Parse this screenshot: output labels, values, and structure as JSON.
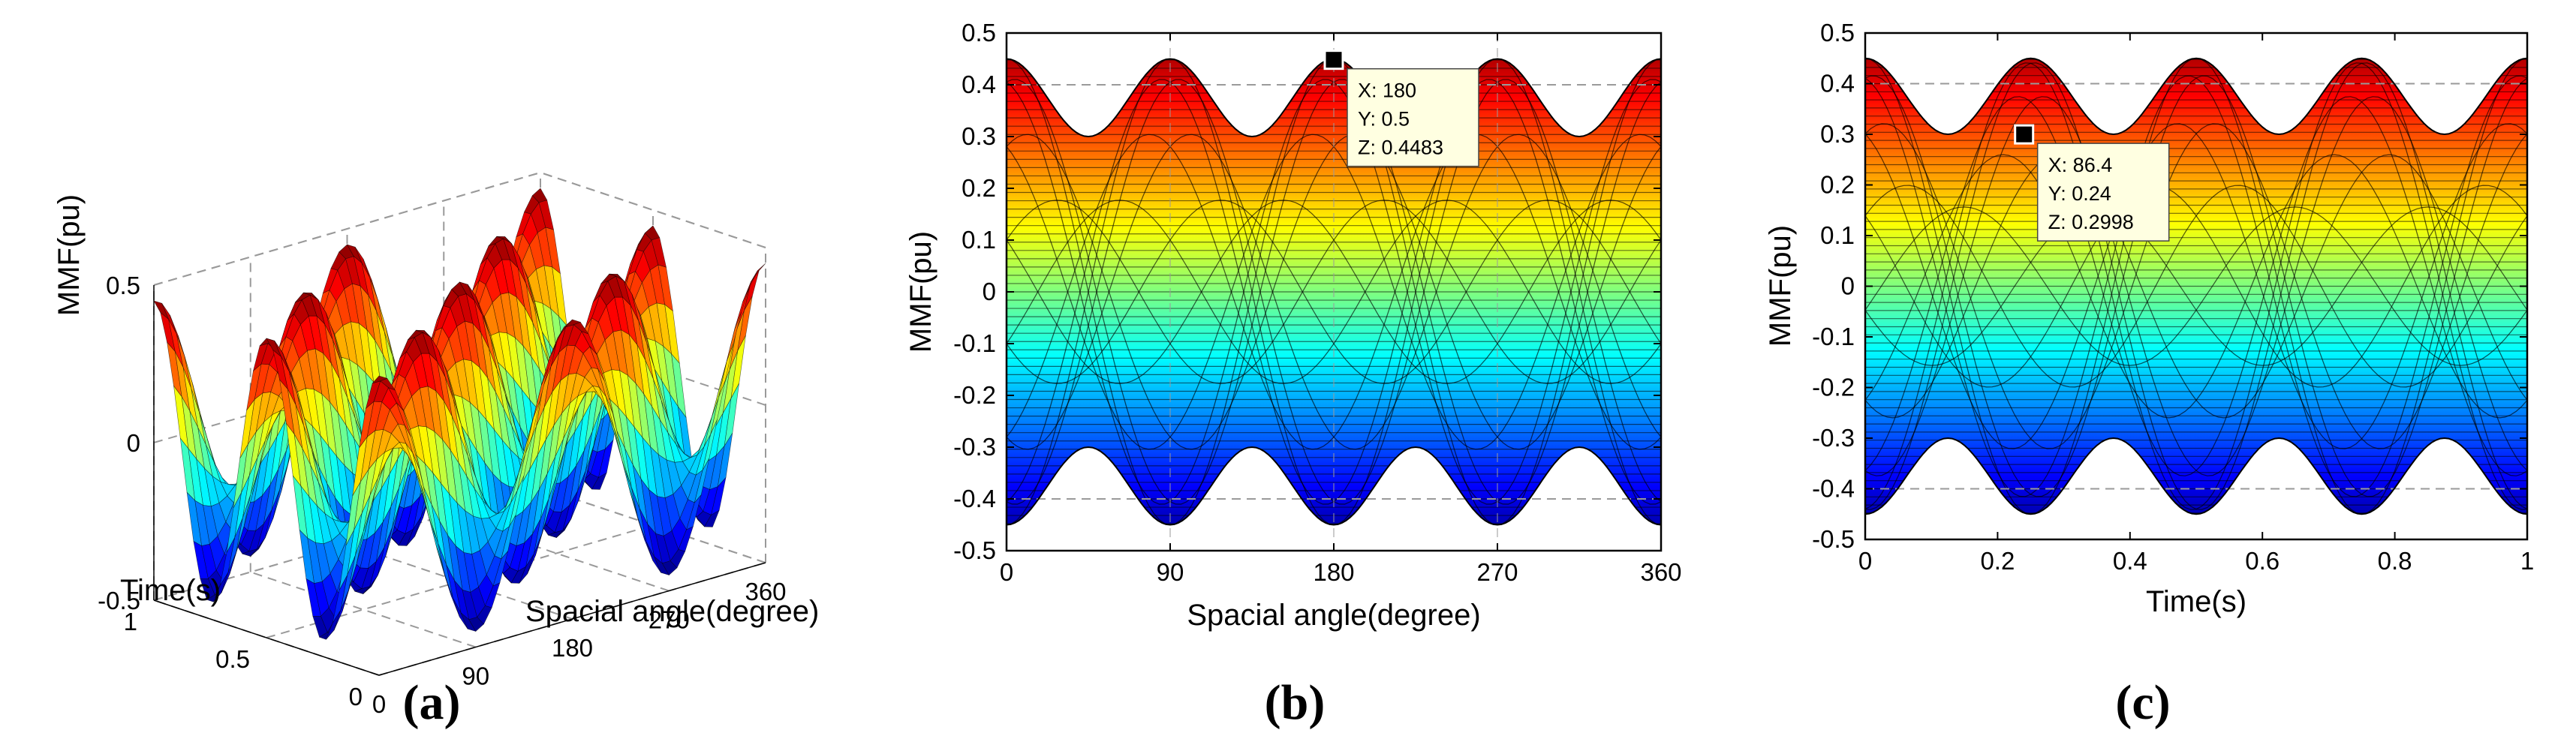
{
  "colors": {
    "colormap": "jet",
    "mesh": "#000000",
    "grid": "#9a9a9a",
    "tip_bg": "#ffffe1"
  },
  "chart_data": [
    {
      "type": "surface3d",
      "panel_label": "(a)",
      "xlabel": "Spacial angle(degree)",
      "ylabel": "Time(s)",
      "zlabel": "MMF(pu)",
      "xlim": [
        0,
        360
      ],
      "ylim": [
        0,
        1
      ],
      "zlim": [
        -0.5,
        0.5
      ],
      "xticks": [
        "0",
        "90",
        "180",
        "270",
        "360"
      ],
      "yticks": [
        "0",
        "0.5",
        "1"
      ],
      "zticks": [
        "-0.5",
        "0",
        "0.5"
      ],
      "grid": true
    },
    {
      "type": "surface_xz_view",
      "panel_label": "(b)",
      "xlabel": "Spacial angle(degree)",
      "ylabel": "MMF(pu)",
      "xlim": [
        0,
        360
      ],
      "ylim": [
        -0.5,
        0.5
      ],
      "xticks": [
        "0",
        "90",
        "180",
        "270",
        "360"
      ],
      "yticks": [
        "-0.5",
        "-0.4",
        "-0.3",
        "-0.2",
        "-0.1",
        "0",
        "0.1",
        "0.2",
        "0.3",
        "0.4",
        "0.5"
      ],
      "envelope_max_at_0": 0.45,
      "envelope_min_at_90": 0.3,
      "marker": {
        "x": 180,
        "z": 0.4483
      },
      "datatip": [
        "X: 180",
        "Y: 0.5",
        "Z: 0.4483"
      ],
      "grid": true
    },
    {
      "type": "surface_yz_view",
      "panel_label": "(c)",
      "xlabel": "Time(s)",
      "ylabel": "MMF(pu)",
      "xlim": [
        0,
        1
      ],
      "ylim": [
        -0.5,
        0.5
      ],
      "xticks": [
        "0",
        "0.2",
        "0.4",
        "0.6",
        "0.8",
        "1"
      ],
      "yticks": [
        "-0.5",
        "-0.4",
        "-0.3",
        "-0.2",
        "-0.1",
        "0",
        "0.1",
        "0.2",
        "0.3",
        "0.4",
        "0.5"
      ],
      "envelope_max_at_0": 0.45,
      "envelope_min_at_0.25": 0.3,
      "marker": {
        "x": 0.24,
        "z": 0.2998
      },
      "datatip": [
        "X: 86.4",
        "Y: 0.24",
        "Z: 0.2998"
      ],
      "grid": true
    }
  ]
}
